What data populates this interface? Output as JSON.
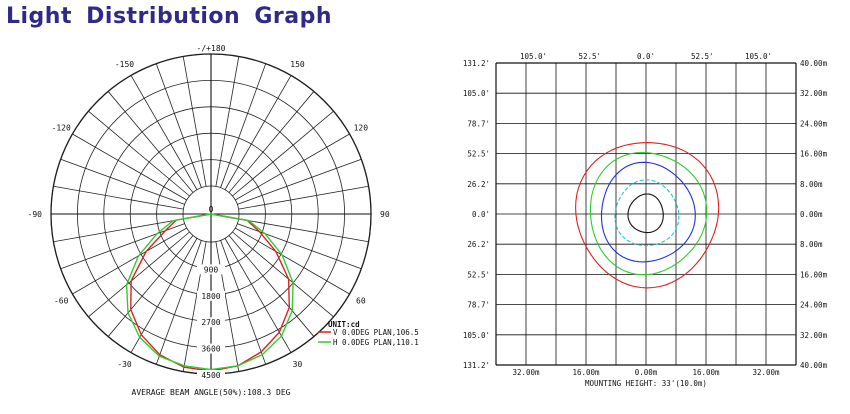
{
  "title": "Light Distribution Graph",
  "chart_data": [
    {
      "type": "polar",
      "angle_labels": [
        {
          "text": "-/+180",
          "angle": 180
        },
        {
          "text": "150",
          "angle": 150
        },
        {
          "text": "-150",
          "angle": -150
        },
        {
          "text": "120",
          "angle": 120
        },
        {
          "text": "-120",
          "angle": -120
        },
        {
          "text": "90",
          "angle": 90
        },
        {
          "text": "-90",
          "angle": -90
        },
        {
          "text": "60",
          "angle": 60
        },
        {
          "text": "-60",
          "angle": -60
        },
        {
          "text": "30",
          "angle": 30
        },
        {
          "text": "-30",
          "angle": -30
        },
        {
          "text": "0",
          "angle": 0
        }
      ],
      "radial_labels": [
        "0",
        "900",
        "1800",
        "2700",
        "3600",
        "4500"
      ],
      "rmax": 4500,
      "unit_label": "UNIT:cd",
      "series": [
        {
          "name": "V 0.0DEG PLAN,106.5",
          "color": "#e02020",
          "points": [
            [
              -90,
              0
            ],
            [
              -80,
              250
            ],
            [
              -70,
              700
            ],
            [
              -60,
              1600
            ],
            [
              -50,
              2600
            ],
            [
              -40,
              3300
            ],
            [
              -30,
              3800
            ],
            [
              -20,
              4150
            ],
            [
              -10,
              4350
            ],
            [
              0,
              4400
            ],
            [
              10,
              4300
            ],
            [
              20,
              4050
            ],
            [
              30,
              3700
            ],
            [
              40,
              3200
            ],
            [
              50,
              2500
            ],
            [
              60,
              1600
            ],
            [
              70,
              800
            ],
            [
              80,
              300
            ],
            [
              90,
              0
            ]
          ]
        },
        {
          "name": "H 0.0DEG PLAN,110.1",
          "color": "#30cc30",
          "points": [
            [
              -90,
              0
            ],
            [
              -80,
              350
            ],
            [
              -70,
              1000
            ],
            [
              -60,
              1900
            ],
            [
              -50,
              2800
            ],
            [
              -40,
              3450
            ],
            [
              -30,
              3900
            ],
            [
              -20,
              4200
            ],
            [
              -10,
              4300
            ],
            [
              0,
              4350
            ],
            [
              10,
              4300
            ],
            [
              20,
              4150
            ],
            [
              30,
              3850
            ],
            [
              40,
              3350
            ],
            [
              50,
              2700
            ],
            [
              60,
              1850
            ],
            [
              70,
              1000
            ],
            [
              80,
              350
            ],
            [
              90,
              0
            ]
          ]
        }
      ],
      "footer": "AVERAGE BEAM ANGLE(50%):108.3 DEG"
    },
    {
      "type": "isolux",
      "left_ticks": [
        "131.2'",
        "105.0'",
        "78.7'",
        "52.5'",
        "26.2'",
        "0.0'",
        "26.2'",
        "52.5'",
        "78.7'",
        "105.0'",
        "131.2'"
      ],
      "right_ticks": [
        "40.00m",
        "32.00m",
        "24.00m",
        "16.00m",
        "8.00m",
        "0.00m",
        "8.00m",
        "16.00m",
        "24.00m",
        "32.00m",
        "40.00m"
      ],
      "top_ticks": [
        "105.0'",
        "52.5'",
        "0.0'",
        "52.5'",
        "105.0'"
      ],
      "bottom_ticks": [
        "32.00m",
        "16.00m",
        "0.00m",
        "16.00m",
        "32.00m"
      ],
      "xlabel": "MOUNTING HEIGHT: 33'(10.0m)",
      "range_m": [
        -40,
        40
      ],
      "contours": [
        {
          "color": "#e02020",
          "dashed": false,
          "rx": 19,
          "ry_top": 19.5,
          "ry_bottom": 19,
          "cx": 0.3
        },
        {
          "color": "#30cc30",
          "dashed": false,
          "rx": 15.5,
          "ry_top": 16.5,
          "ry_bottom": 15.8,
          "cx": 0.3
        },
        {
          "color": "#2030e0",
          "dashed": false,
          "rx": 12.5,
          "ry_top": 13.5,
          "ry_bottom": 12.8,
          "cx": 0.3
        },
        {
          "color": "#20c8d8",
          "dashed": true,
          "rx": 8.5,
          "ry_top": 8.8,
          "ry_bottom": 8.6,
          "cx": 0.2
        },
        {
          "color": "#111111",
          "dashed": false,
          "rx": 4.7,
          "ry_top": 5.2,
          "ry_bottom": 5.0,
          "cx": 0.0
        }
      ]
    }
  ]
}
